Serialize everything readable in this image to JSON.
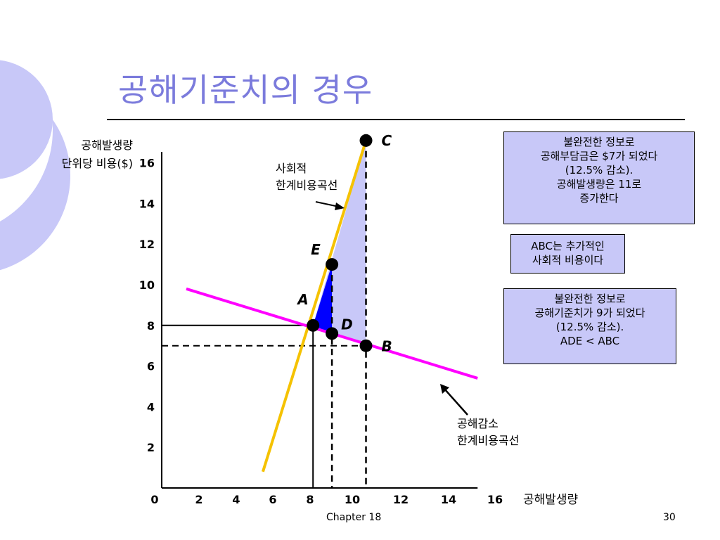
{
  "slide": {
    "title": "공해기준치의 경우",
    "footer_center": "Chapter 18",
    "page_number": "30"
  },
  "colors": {
    "title": "#7b7bdc",
    "decor_circle": "#c8c8f8",
    "smc_line": "#f5c200",
    "mac_line": "#ff00ff",
    "abc_fill": "#c8c8f8",
    "ade_fill": "#0000ff",
    "box_fill": "#c8c8f8"
  },
  "chart_data": {
    "type": "line",
    "ylabel_lines": [
      "공해발생량",
      "단위당 비용($)"
    ],
    "xlabel": "공해발생량",
    "xlim": [
      0,
      16.7
    ],
    "ylim": [
      0,
      17
    ],
    "x_ticks": [
      "0",
      "2",
      "4",
      "6",
      "8",
      "10",
      "12",
      "14",
      "16"
    ],
    "y_ticks": [
      "2",
      "4",
      "6",
      "8",
      "10",
      "12",
      "14",
      "16"
    ],
    "series": [
      {
        "name": "사회적 한계비용곡선",
        "points": [
          [
            5.35,
            0.8
          ],
          [
            10.8,
            17.1
          ]
        ]
      },
      {
        "name": "공해감소 한계비용곡선",
        "points": [
          [
            1.3,
            9.8
          ],
          [
            16.7,
            5.4
          ]
        ]
      }
    ],
    "points": [
      {
        "label": "A",
        "x": 8.0,
        "y": 8.0
      },
      {
        "label": "B",
        "x": 10.8,
        "y": 7.0
      },
      {
        "label": "C",
        "x": 10.8,
        "y": 17.1
      },
      {
        "label": "D",
        "x": 9.0,
        "y": 7.6
      },
      {
        "label": "E",
        "x": 9.0,
        "y": 11.0
      }
    ],
    "annotations": [
      {
        "lines": [
          "사회적",
          "한계비용곡선"
        ]
      },
      {
        "lines": [
          "공해감소",
          "한계비용곡선"
        ]
      }
    ]
  },
  "info_boxes": [
    {
      "lines": [
        "불완전한 정보로",
        "공해부담금은 $7가 되었다",
        "(12.5% 감소).",
        "공해발생량은 11로",
        "증가한다"
      ]
    },
    {
      "lines": [
        "ABC는 추가적인",
        "사회적 비용이다"
      ]
    },
    {
      "lines": [
        "불완전한 정보로",
        "공해기준치가 9가 되었다",
        "(12.5% 감소).",
        "ADE < ABC"
      ]
    }
  ]
}
